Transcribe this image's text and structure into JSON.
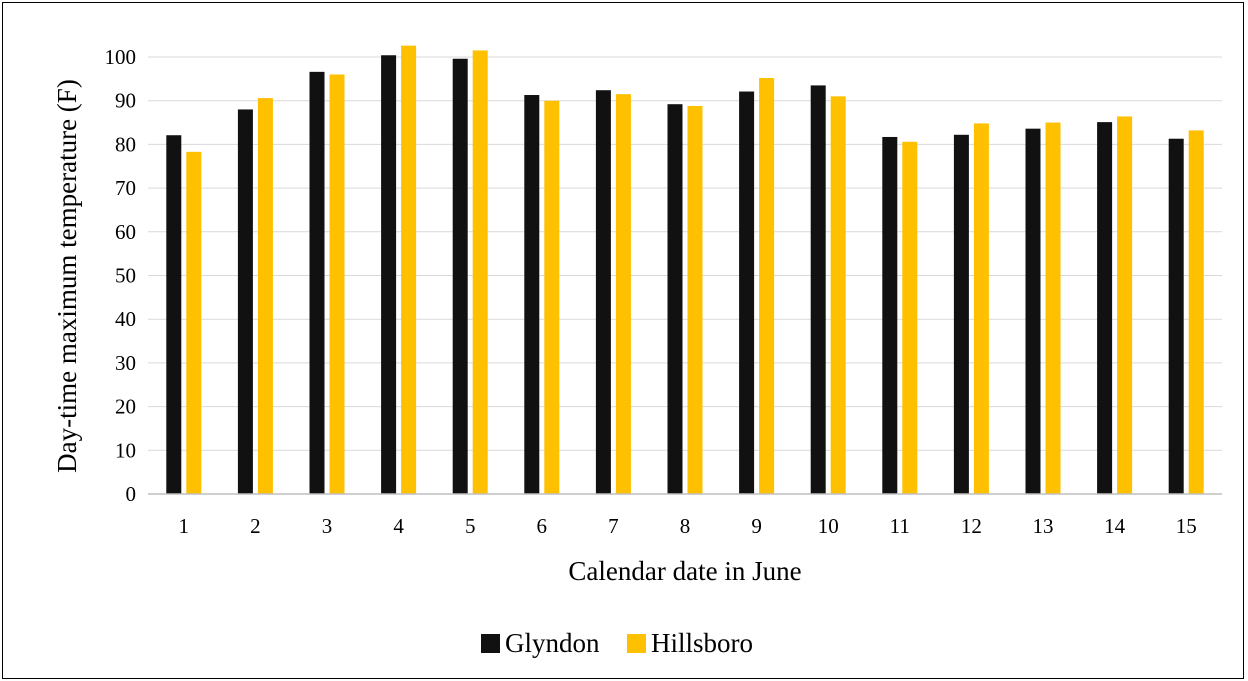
{
  "chart_data": {
    "type": "bar",
    "title": "",
    "xlabel": "Calendar date in June",
    "ylabel": "Day-time maximum temperature (F)",
    "categories": [
      "1",
      "2",
      "3",
      "4",
      "5",
      "6",
      "7",
      "8",
      "9",
      "10",
      "11",
      "12",
      "13",
      "14",
      "15"
    ],
    "ylim": [
      0,
      100
    ],
    "yticks": [
      0,
      10,
      20,
      30,
      40,
      50,
      60,
      70,
      80,
      90,
      100
    ],
    "grid": true,
    "legend_position": "bottom",
    "series": [
      {
        "name": "Glyndon",
        "color": "#111111",
        "values": [
          82.1,
          88.0,
          96.6,
          100.4,
          99.6,
          91.3,
          92.4,
          89.2,
          92.1,
          93.5,
          81.7,
          82.2,
          83.6,
          85.1,
          81.3
        ]
      },
      {
        "name": "Hillsboro",
        "color": "#FFC000",
        "values": [
          78.3,
          90.6,
          96.0,
          102.6,
          101.5,
          90.0,
          91.5,
          88.8,
          95.2,
          91.0,
          80.6,
          84.8,
          85.0,
          86.4,
          83.2
        ]
      }
    ]
  }
}
